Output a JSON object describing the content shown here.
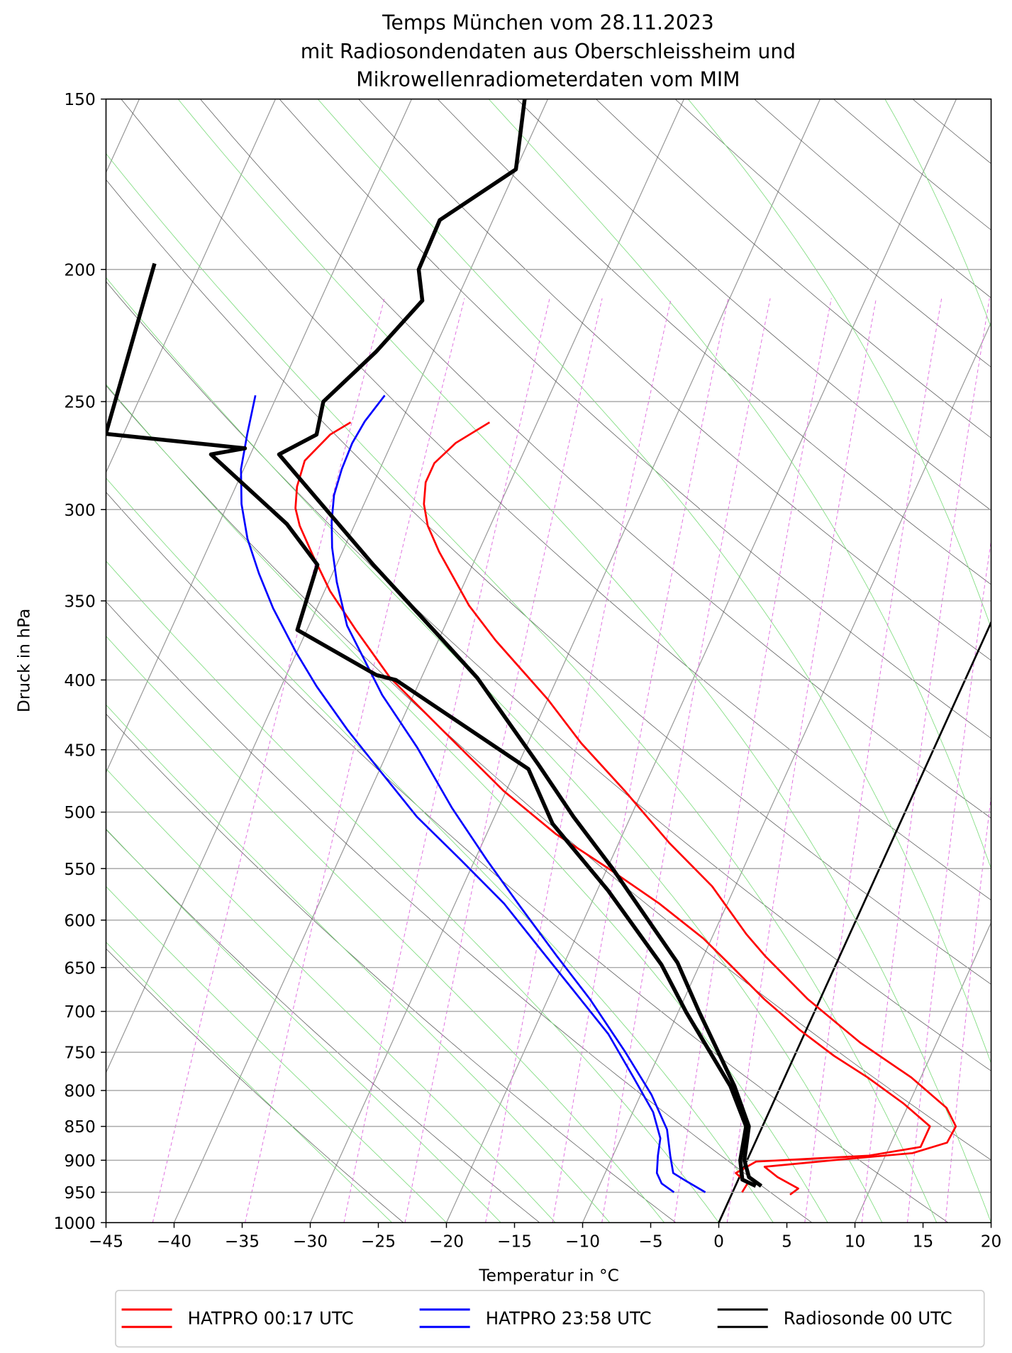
{
  "chart_data": {
    "type": "skewt",
    "title": [
      "Temps München vom 28.11.2023",
      "mit Radiosondendaten aus Oberschleissheim und",
      "Mikrowellenradiometerdaten vom MIM"
    ],
    "x_label": "Temperatur in °C",
    "y_label": "Druck in hPa",
    "xlim": [
      -45,
      20
    ],
    "ylim": [
      1000,
      150
    ],
    "log_y": true,
    "grid": true,
    "legend": "bottom",
    "xticks": [
      {
        "value": -45,
        "label": "−45"
      },
      {
        "value": -40,
        "label": "−40"
      },
      {
        "value": -35,
        "label": "−35"
      },
      {
        "value": -30,
        "label": "−30"
      },
      {
        "value": -25,
        "label": "−25"
      },
      {
        "value": -20,
        "label": "−20"
      },
      {
        "value": -15,
        "label": "−15"
      },
      {
        "value": -10,
        "label": "−10"
      },
      {
        "value": -5,
        "label": "−5"
      },
      0,
      5,
      10,
      15,
      20
    ],
    "yticks": [
      150,
      200,
      250,
      300,
      350,
      400,
      450,
      500,
      550,
      600,
      650,
      700,
      750,
      800,
      850,
      900,
      950,
      1000
    ],
    "series": [
      {
        "name": "HATPRO 00:17 UTC",
        "color": "#ff0000",
        "width": 2.2,
        "profiles": [
          {
            "pressure": [
              258.9,
              268.1,
              277.4,
              286.5,
              297.2,
              308.3,
              322.1,
              352.8,
              374.1,
              413.3,
              444.9,
              482.3,
              526.6,
              566.7,
              614.3,
              637.3,
              685.8,
              738,
              782.6,
              823.8,
              850,
              873.6,
              889.2,
              900,
              910,
              926,
              944,
              953.8
            ],
            "temperature": [
              -43.5,
              -45.3,
              -46.2,
              -46.2,
              -45.6,
              -44.6,
              -42.9,
              -38.9,
              -35.8,
              -30.0,
              -26.1,
              -21.3,
              -16.3,
              -11.7,
              -7.6,
              -5.5,
              -0.9,
              4.4,
              9.3,
              12.9,
              14.2,
              14.1,
              11.9,
              6.3,
              1.5,
              2.8,
              4.7,
              4.3
            ]
          },
          {
            "pressure": [
              258.9,
              264.3,
              276.2,
              288.6,
              299.3,
              308.3,
              324.5,
              344.2,
              367.6,
              398.5,
              441.6,
              482.3,
              518.9,
              550,
              583.5,
              618.9,
              646.7,
              685.8,
              722,
              754.5,
              782.6,
              817.8,
              850,
              880,
              893,
              902,
              919.7,
              936,
              950
            ],
            "temperature": [
              -53.7,
              -54.8,
              -55.8,
              -55.5,
              -54.9,
              -54.0,
              -52.0,
              -49.6,
              -46.4,
              -42.3,
              -35.8,
              -30.2,
              -24.9,
              -19.9,
              -15.0,
              -10.6,
              -7.8,
              -4.1,
              -0.5,
              2.9,
              6.1,
              9.6,
              12.3,
              12.3,
              8.8,
              0.7,
              -0.4,
              0.8,
              0.7
            ]
          }
        ]
      },
      {
        "name": "HATPRO 23:58 UTC",
        "color": "#0000ff",
        "width": 2.2,
        "profiles": [
          {
            "pressure": [
              247.4,
              258.5,
              268.1,
              280.2,
              292.8,
              306,
              319.8,
              339.1,
              364.9,
              410.3,
              448.1,
              496.6,
              542.3,
              587.8,
              637.3,
              685.8,
              749,
              805.8,
              854.6,
              893,
              919.7,
              933,
              950
            ],
            "temperature": [
              -52.1,
              -52.7,
              -52.9,
              -52.8,
              -52.5,
              -51.8,
              -50.9,
              -49.4,
              -47.2,
              -42.3,
              -38.0,
              -33.4,
              -29.1,
              -25.0,
              -20.8,
              -16.9,
              -12.6,
              -9.2,
              -6.9,
              -5.8,
              -5.0,
              -3.7,
              -2.0
            ]
          },
          {
            "pressure": [
              247.4,
              264.3,
              280.2,
              297.2,
              315.2,
              334.2,
              354.4,
              381.3,
              404.4,
              435.1,
              468.3,
              503.9,
              542.3,
              583.5,
              628,
              675.8,
              727.2,
              782.6,
              829.8,
              867.2,
              893,
              919.7,
              936,
              950
            ],
            "temperature": [
              -61.6,
              -60.9,
              -60.2,
              -59.0,
              -57.4,
              -55.4,
              -53.2,
              -50.1,
              -47.4,
              -43.7,
              -39.7,
              -35.7,
              -31.0,
              -26.4,
              -22.4,
              -18.4,
              -14.4,
              -11.1,
              -8.5,
              -7.1,
              -6.7,
              -6.2,
              -5.5,
              -4.3
            ]
          }
        ]
      },
      {
        "name": "Radiosonde 00 UTC",
        "color": "#000000",
        "width": 4.5,
        "profiles": [
          {
            "pressure": [
              150,
              168.9,
              184,
              200,
              210.8,
              229.9,
              250,
              264.3,
              273.3,
              329.3,
              372,
              398.5,
              461.5,
              503.9,
              550,
              644.7,
              700,
              794,
              850,
              900,
              926,
              940
            ],
            "temperature": [
              -51.7,
              -50.0,
              -53.9,
              -53.8,
              -52.5,
              -54.2,
              -56.4,
              -55.8,
              -57.9,
              -47.3,
              -40.0,
              -35.9,
              -28.5,
              -24.2,
              -19.6,
              -11.7,
              -8.5,
              -3.4,
              -1.0,
              -0.2,
              0.7,
              1.9
            ]
          },
          {
            "pressure": [
              198,
              264,
              270.5,
              273.3,
              307.4,
              329.3,
              367.6,
              396.7,
              400,
              464.9,
              509.9,
              570.8,
              647,
              701,
              794,
              850,
              900,
              930,
              940
            ],
            "temperature": [
              -73.4,
              -71.3,
              -60.6,
              -62.9,
              -55.0,
              -51.4,
              -50.7,
              -43.4,
              -41.8,
              -29.1,
              -25.5,
              -19.2,
              -12.8,
              -9.4,
              -3.7,
              -1.2,
              -0.5,
              0.3,
              1.5
            ]
          }
        ]
      }
    ]
  }
}
